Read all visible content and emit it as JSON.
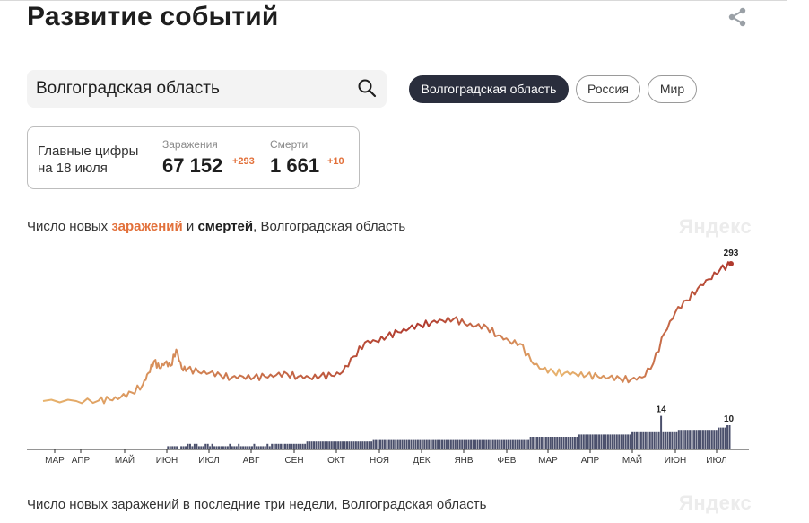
{
  "header": {
    "title": "Развитие событий",
    "share_icon": "share-icon"
  },
  "search": {
    "value": "Волгоградская область",
    "icon": "search-icon"
  },
  "region_tabs": [
    "Волгоградская область",
    "Россия",
    "Мир"
  ],
  "stats": {
    "heading": "Главные цифры на 18 июля",
    "infections": {
      "label": "Заражения",
      "value": "67 152",
      "delta": "+293"
    },
    "deaths": {
      "label": "Смерти",
      "value": "1 661",
      "delta": "+10"
    }
  },
  "chart_section": {
    "prefix": "Число новых ",
    "infections_word": "заражений",
    "conj": " и ",
    "deaths_word": "смертей",
    "suffix": ", Волгоградская область",
    "brand": "Яндекс"
  },
  "bottom_section": {
    "title": "Число новых заражений в последние три недели, Волгоградская область",
    "brand": "Яндекс"
  },
  "colors": {
    "infections_start": "#e8b46e",
    "infections_peak": "#b03a2e",
    "deaths_bars": "#4a4f6b",
    "accent": "#e2703a",
    "active_chip": "#2a2e3d"
  },
  "chart_data": {
    "type": "line",
    "x_ticks": [
      "МАР",
      "АПР",
      "МАЙ",
      "ИЮН",
      "ИЮЛ",
      "АВГ",
      "СЕН",
      "ОКТ",
      "НОЯ",
      "ДЕК",
      "ЯНВ",
      "ФЕВ",
      "МАР",
      "АПР",
      "МАЙ",
      "ИЮН",
      "ИЮЛ"
    ],
    "annotations": [
      {
        "series": "infections",
        "label": "293",
        "value": 293
      },
      {
        "series": "deaths",
        "label": "14",
        "value": 14
      },
      {
        "series": "deaths",
        "label": "10",
        "value": 10
      }
    ],
    "series": [
      {
        "key": "infections",
        "color_from": "#e8b46e",
        "color_to": "#b03a2e",
        "points": [
          [
            0,
            0
          ],
          [
            3,
            0
          ],
          [
            5,
            1
          ],
          [
            6,
            3
          ],
          [
            7,
            8
          ],
          [
            8,
            18
          ],
          [
            9,
            35
          ],
          [
            9.5,
            60
          ],
          [
            10,
            85
          ],
          [
            10.5,
            70
          ],
          [
            11,
            82
          ],
          [
            11.5,
            75
          ],
          [
            12,
            110
          ],
          [
            12.5,
            70
          ],
          [
            13,
            68
          ],
          [
            14,
            62
          ],
          [
            15,
            60
          ],
          [
            16,
            55
          ],
          [
            17,
            50
          ],
          [
            18,
            52
          ],
          [
            19,
            50
          ],
          [
            20,
            52
          ],
          [
            21,
            55
          ],
          [
            22,
            58
          ],
          [
            23,
            52
          ],
          [
            24,
            50
          ],
          [
            25,
            53
          ],
          [
            26,
            54
          ],
          [
            27,
            62
          ],
          [
            28,
            95
          ],
          [
            29,
            125
          ],
          [
            30,
            128
          ],
          [
            31,
            138
          ],
          [
            32,
            147
          ],
          [
            33,
            155
          ],
          [
            34,
            162
          ],
          [
            35,
            168
          ],
          [
            36,
            172
          ],
          [
            37,
            175
          ],
          [
            38,
            165
          ],
          [
            39,
            160
          ],
          [
            40,
            158
          ],
          [
            41,
            140
          ],
          [
            42,
            128
          ],
          [
            43,
            122
          ],
          [
            44,
            85
          ],
          [
            45,
            68
          ],
          [
            46,
            62
          ],
          [
            47,
            60
          ],
          [
            48,
            58
          ],
          [
            49,
            55
          ],
          [
            50,
            52
          ],
          [
            51,
            50
          ],
          [
            52,
            48
          ],
          [
            53,
            46
          ],
          [
            54,
            50
          ],
          [
            55,
            80
          ],
          [
            56,
            145
          ],
          [
            57,
            190
          ],
          [
            58,
            215
          ],
          [
            59,
            240
          ],
          [
            60,
            260
          ],
          [
            61,
            280
          ],
          [
            62,
            293
          ]
        ]
      },
      {
        "key": "deaths",
        "color": "#4a4f6b",
        "bars": [
          0,
          0,
          0,
          0,
          0,
          0,
          0,
          0,
          0,
          0,
          0,
          0,
          0,
          0,
          0,
          0,
          0,
          0,
          0,
          0,
          0,
          0,
          0,
          0,
          0,
          0,
          0,
          0,
          0,
          0,
          0,
          0,
          0,
          0,
          0,
          0,
          0,
          0,
          0,
          0,
          0,
          0,
          0,
          0,
          0,
          0,
          0,
          0,
          0,
          0,
          0,
          0,
          0,
          0,
          0,
          0,
          0,
          0,
          0,
          0,
          0,
          0,
          0,
          1,
          1,
          1,
          1,
          1,
          0,
          1,
          1,
          1,
          2,
          2,
          1,
          2,
          2,
          1,
          1,
          1,
          2,
          2,
          1,
          2,
          1,
          1,
          1,
          1,
          1,
          1,
          1,
          2,
          1,
          1,
          1,
          2,
          1,
          1,
          1,
          1,
          1,
          1,
          2,
          1,
          1,
          1,
          1,
          1,
          2,
          1,
          2,
          2,
          2,
          2,
          2,
          2,
          2,
          2,
          2,
          2,
          2,
          2,
          2,
          2,
          2,
          2,
          3,
          3,
          3,
          3,
          3,
          3,
          3,
          3,
          3,
          3,
          3,
          3,
          3,
          3,
          3,
          3,
          3,
          3,
          3,
          3,
          3,
          3,
          3,
          3,
          3,
          3,
          3,
          3,
          3,
          3,
          4,
          4,
          4,
          4,
          4,
          4,
          4,
          4,
          4,
          4,
          4,
          4,
          4,
          4,
          4,
          4,
          4,
          4,
          4,
          4,
          4,
          4,
          4,
          4,
          4,
          4,
          4,
          4,
          4,
          4,
          4,
          4,
          4,
          4,
          4,
          4,
          4,
          4,
          4,
          4,
          4,
          4,
          4,
          4,
          4,
          4,
          4,
          4,
          4,
          4,
          4,
          4,
          4,
          4,
          4,
          4,
          4,
          4,
          4,
          4,
          4,
          4,
          4,
          4,
          4,
          4,
          4,
          4,
          4,
          4,
          4,
          5,
          5,
          5,
          5,
          5,
          5,
          5,
          5,
          5,
          5,
          5,
          5,
          5,
          5,
          5,
          5,
          5,
          5,
          5,
          5,
          5,
          5,
          6,
          6,
          6,
          6,
          6,
          6,
          6,
          6,
          6,
          6,
          6,
          6,
          6,
          6,
          6,
          6,
          6,
          6,
          6,
          6,
          6,
          6,
          6,
          6,
          7,
          7,
          7,
          7,
          7,
          7,
          7,
          7,
          7,
          7,
          7,
          7,
          7,
          14,
          7,
          7,
          7,
          7,
          7,
          7,
          7,
          8,
          8,
          8,
          8,
          8,
          8,
          8,
          8,
          8,
          8,
          8,
          8,
          8,
          8,
          8,
          8,
          8,
          8,
          9,
          9,
          9,
          9,
          10,
          10
        ]
      }
    ]
  }
}
